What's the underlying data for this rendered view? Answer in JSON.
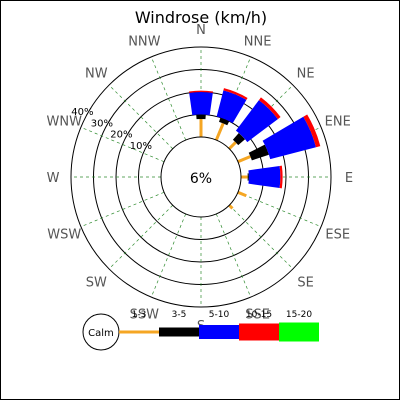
{
  "chart_data": {
    "type": "windrose",
    "title": "Windrose (km/h)",
    "calm": {
      "label": "6%",
      "legend_label": "Calm"
    },
    "directions": [
      "N",
      "NNE",
      "NE",
      "ENE",
      "E",
      "ESE",
      "SE",
      "SSE",
      "S",
      "SSW",
      "SW",
      "WSW",
      "W",
      "WNW",
      "NW",
      "NNW"
    ],
    "ring_labels": [
      "10%",
      "20%",
      "30%",
      "40%"
    ],
    "rings": [
      10,
      20,
      30,
      40
    ],
    "r_max": 40,
    "grid": true,
    "bins": [
      "1-3",
      "3-5",
      "5-10",
      "10-15",
      "15-20"
    ],
    "bin_colors": [
      "#f5a623",
      "#000000",
      "#0000ff",
      "#ff0000",
      "#00ff00"
    ],
    "sector_width_deg": 16,
    "stacks": [
      {
        "direction": "N",
        "segments": [
          8,
          2,
          10,
          0.6,
          0
        ]
      },
      {
        "direction": "NNE",
        "segments": [
          8,
          2,
          12,
          1,
          0
        ]
      },
      {
        "direction": "NE",
        "segments": [
          4,
          4,
          17,
          1.5,
          0
        ]
      },
      {
        "direction": "ENE",
        "segments": [
          6,
          8,
          21,
          2,
          0
        ]
      },
      {
        "direction": "E",
        "segments": [
          3,
          0.5,
          14,
          1,
          0
        ]
      },
      {
        "direction": "ESE",
        "segments": [
          4,
          0,
          0,
          0,
          0
        ]
      },
      {
        "direction": "SE",
        "segments": [
          2,
          0,
          0,
          0,
          0
        ]
      }
    ]
  }
}
